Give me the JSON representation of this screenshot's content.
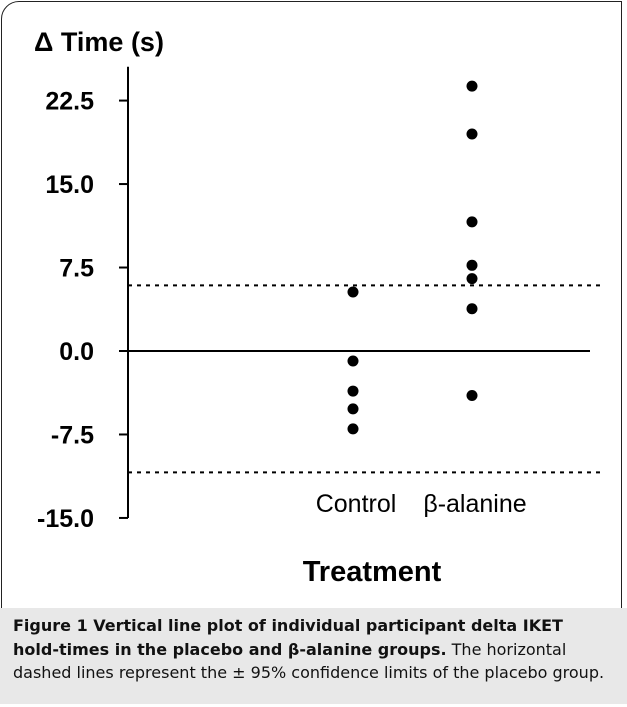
{
  "chart_data": {
    "type": "scatter",
    "ylabel": "Δ Time (s)",
    "xlabel": "Treatment",
    "ylim": [
      -15.0,
      25.0
    ],
    "yticks": [
      "22.5",
      "15.0",
      "7.5",
      "0.0",
      "-7.5",
      "-15.0"
    ],
    "ytick_values": [
      22.5,
      15.0,
      7.5,
      0.0,
      -7.5,
      -15.0
    ],
    "categories": [
      "Control",
      "β-alanine"
    ],
    "series": [
      {
        "category": "Control",
        "values": [
          5.3,
          -0.9,
          -3.6,
          -5.2,
          -7.0
        ]
      },
      {
        "category": "β-alanine",
        "values": [
          23.8,
          19.5,
          11.6,
          7.7,
          6.5,
          3.8,
          -4.0
        ]
      }
    ],
    "reference_lines": {
      "solid": [
        0.0
      ],
      "dashed": [
        5.9,
        -10.9
      ]
    },
    "grid": false,
    "legend": "none"
  },
  "caption": {
    "bold": "Figure 1 Vertical line plot of individual participant delta IKET hold-times in the placebo and β-alanine groups.",
    "normal": " The horizontal dashed lines represent the ± 95% confidence limits of the placebo group."
  }
}
